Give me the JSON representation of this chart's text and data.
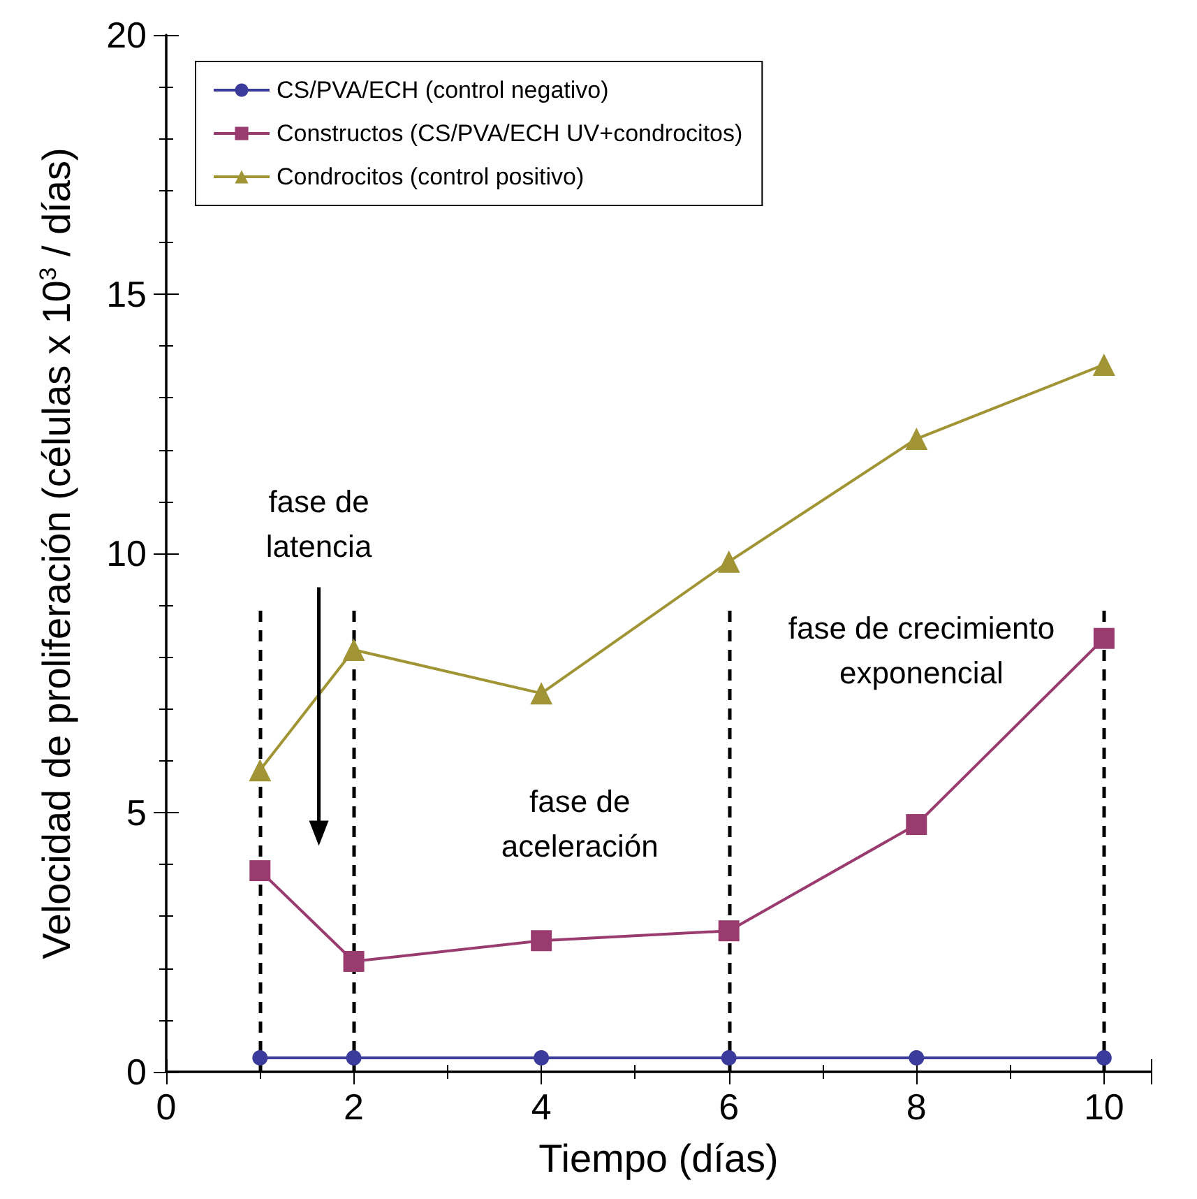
{
  "chart_data": {
    "type": "line",
    "xlabel": "Tiempo (días)",
    "ylabel": "Velocidad de proliferación (células x 10$^{3}$ / días)",
    "x": [
      1,
      2,
      4,
      6,
      8,
      10
    ],
    "series": [
      {
        "name": "CS/PVA/ECH (control negativo)",
        "color": "#3b3b9c",
        "marker": "circle",
        "values": [
          0.27,
          0.27,
          0.27,
          0.27,
          0.27,
          0.27
        ]
      },
      {
        "name": "Constructos (CS/PVA/ECH UV+condrocitos)",
        "color": "#9a3b6f",
        "marker": "square",
        "values": [
          3.88,
          2.13,
          2.53,
          2.72,
          4.77,
          8.36
        ]
      },
      {
        "name": "Condrocitos (control positivo)",
        "color": "#a09434",
        "marker": "triangle",
        "values": [
          5.82,
          8.14,
          7.3,
          9.84,
          12.21,
          13.64
        ]
      }
    ],
    "xlim": [
      0,
      10.5
    ],
    "xticks": [
      0,
      2,
      4,
      6,
      8,
      10
    ],
    "ylim": [
      0,
      20
    ],
    "yticks": [
      0,
      5,
      10,
      15,
      20
    ],
    "grid": false,
    "legend": "top left",
    "line_style": "solid",
    "ref_lines": [
      {
        "axis": "x",
        "value": 1,
        "color": "#000000",
        "line_style": "dashed"
      },
      {
        "axis": "x",
        "value": 2,
        "color": "#000000",
        "line_style": "dashed"
      },
      {
        "axis": "x",
        "value": 6,
        "color": "#000000",
        "line_style": "dashed"
      },
      {
        "axis": "x",
        "value": 10,
        "color": "#000000",
        "line_style": "dashed"
      }
    ],
    "annotations": [
      "fase de\nlatencia",
      "fase de\naceleración",
      "fase de crecimiento\nexponencial"
    ]
  }
}
